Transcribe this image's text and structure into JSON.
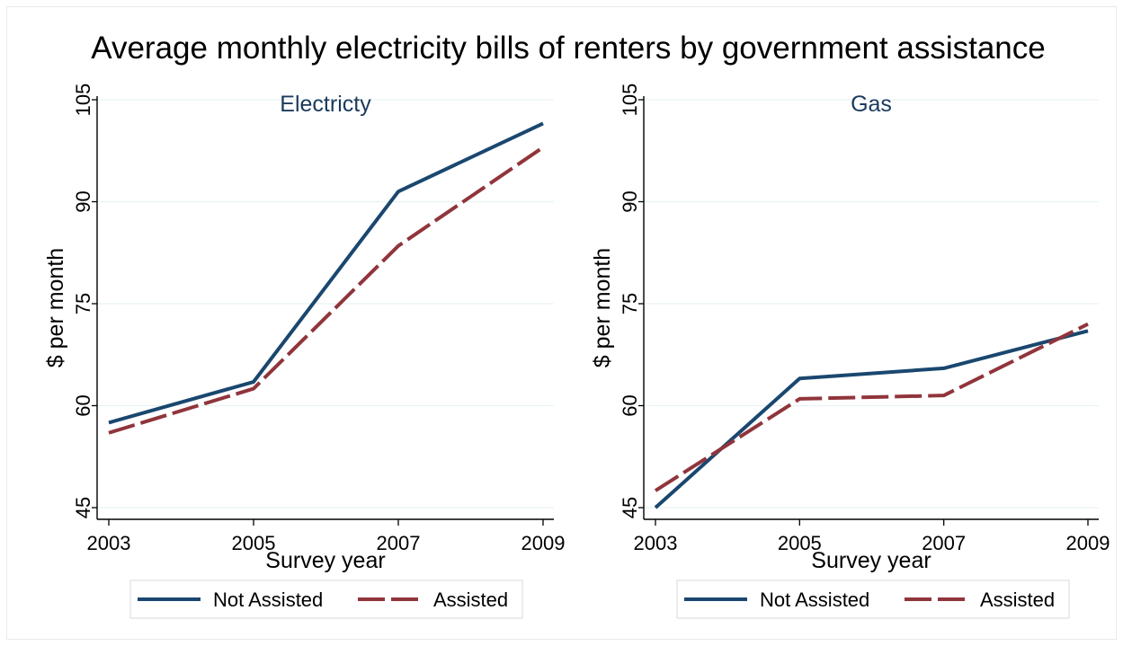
{
  "title": "Average monthly electricity bills of renters by government assistance",
  "colors": {
    "title": "#1a3a5c",
    "not_assisted": "#1a476f",
    "assisted": "#90353b",
    "grid": "#eaf2f3",
    "axis": "#000000"
  },
  "chart_data": [
    {
      "type": "line",
      "title": "Electricty",
      "xlabel": "Survey year",
      "ylabel": "$ per month",
      "x": [
        "2003",
        "2005",
        "2007",
        "2009"
      ],
      "ylim": [
        45,
        105
      ],
      "yticks": [
        "45",
        "60",
        "75",
        "90",
        "105"
      ],
      "grid": true,
      "legend": "bottom",
      "series": [
        {
          "name": "Not Assisted",
          "style": "solid",
          "values": [
            57.5,
            63.5,
            91.5,
            101.5
          ]
        },
        {
          "name": "Assisted",
          "style": "dashed",
          "values": [
            56.0,
            62.5,
            83.5,
            98.0
          ]
        }
      ]
    },
    {
      "type": "line",
      "title": "Gas",
      "xlabel": "Survey year",
      "ylabel": "$ per month",
      "x": [
        "2003",
        "2005",
        "2007",
        "2009"
      ],
      "ylim": [
        45,
        105
      ],
      "yticks": [
        "45",
        "60",
        "75",
        "90",
        "105"
      ],
      "grid": true,
      "legend": "bottom",
      "series": [
        {
          "name": "Not Assisted",
          "style": "solid",
          "values": [
            45.0,
            64.0,
            65.5,
            71.0
          ]
        },
        {
          "name": "Assisted",
          "style": "dashed",
          "values": [
            47.5,
            61.0,
            61.5,
            72.0
          ]
        }
      ]
    }
  ]
}
